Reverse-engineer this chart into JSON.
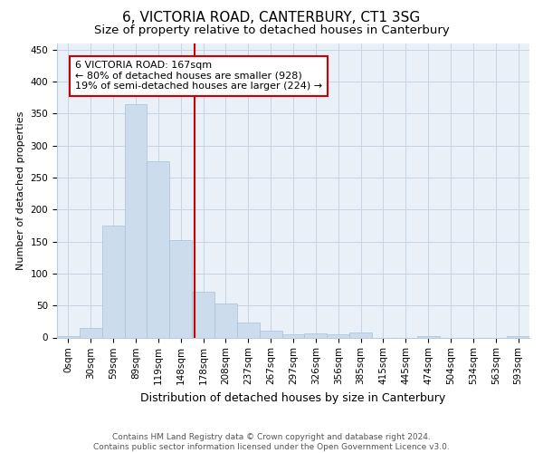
{
  "title": "6, VICTORIA ROAD, CANTERBURY, CT1 3SG",
  "subtitle": "Size of property relative to detached houses in Canterbury",
  "xlabel": "Distribution of detached houses by size in Canterbury",
  "ylabel": "Number of detached properties",
  "bar_labels": [
    "0sqm",
    "30sqm",
    "59sqm",
    "89sqm",
    "119sqm",
    "148sqm",
    "178sqm",
    "208sqm",
    "237sqm",
    "267sqm",
    "297sqm",
    "326sqm",
    "356sqm",
    "385sqm",
    "415sqm",
    "445sqm",
    "474sqm",
    "504sqm",
    "534sqm",
    "563sqm",
    "593sqm"
  ],
  "bar_values": [
    2,
    15,
    175,
    365,
    275,
    152,
    72,
    53,
    23,
    10,
    5,
    6,
    5,
    8,
    0,
    0,
    2,
    0,
    0,
    0,
    2
  ],
  "bar_color": "#cddcec",
  "bar_edgecolor": "#a8c0d8",
  "vline_color": "#cc0000",
  "annotation_text": "6 VICTORIA ROAD: 167sqm\n← 80% of detached houses are smaller (928)\n19% of semi-detached houses are larger (224) →",
  "annotation_box_facecolor": "#ffffff",
  "annotation_box_edgecolor": "#cc0000",
  "ylim": [
    0,
    460
  ],
  "yticks": [
    0,
    50,
    100,
    150,
    200,
    250,
    300,
    350,
    400,
    450
  ],
  "grid_color": "#c5d5e5",
  "background_color": "#eaf0f8",
  "footer_text": "Contains HM Land Registry data © Crown copyright and database right 2024.\nContains public sector information licensed under the Open Government Licence v3.0.",
  "title_fontsize": 11,
  "subtitle_fontsize": 9.5,
  "xlabel_fontsize": 9,
  "ylabel_fontsize": 8,
  "tick_fontsize": 7.5,
  "annotation_fontsize": 8,
  "footer_fontsize": 6.5
}
